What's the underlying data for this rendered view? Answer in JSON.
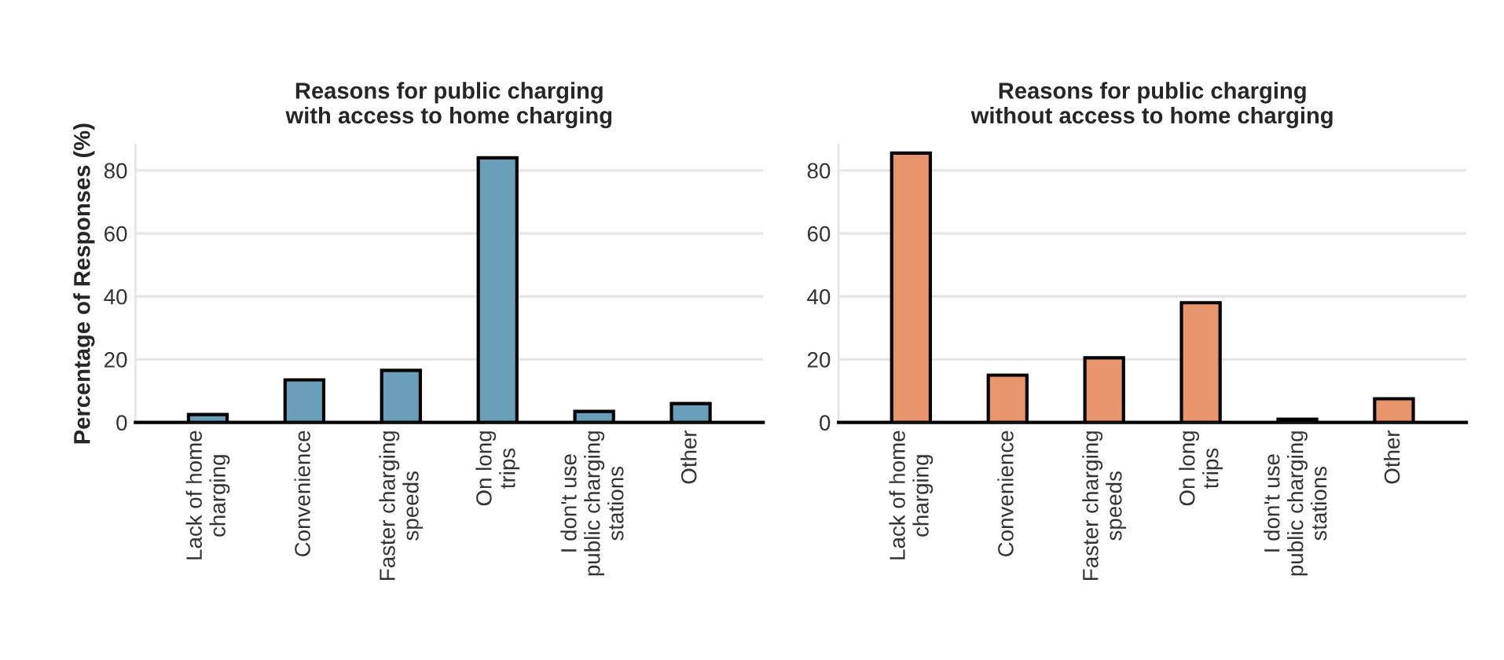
{
  "chart_data": [
    {
      "type": "bar",
      "title": "Reasons for public charging\nwith access to home charging",
      "ylabel": "Percentage of Responses (%)",
      "categories": [
        "Lack of home\ncharging",
        "Convenience",
        "Faster charging\nspeeds",
        "On long\ntrips",
        "I don't use\npublic charging\nstations",
        "Other"
      ],
      "values": [
        2.5,
        13.5,
        16.5,
        84,
        3.5,
        6
      ],
      "color": "#6a9fba",
      "ylim": [
        0,
        88
      ],
      "yticks": [
        0,
        20,
        40,
        60,
        80
      ],
      "grid": "y"
    },
    {
      "type": "bar",
      "title": "Reasons for public charging\nwithout access to home charging",
      "categories": [
        "Lack of home\ncharging",
        "Convenience",
        "Faster charging\nspeeds",
        "On long\ntrips",
        "I don't use\npublic charging\nstations",
        "Other"
      ],
      "values": [
        85.5,
        15,
        20.5,
        38,
        1,
        7.5
      ],
      "color": "#e9956c",
      "ylim": [
        0,
        88
      ],
      "yticks": [
        0,
        20,
        40,
        60,
        80
      ],
      "grid": "y"
    }
  ]
}
